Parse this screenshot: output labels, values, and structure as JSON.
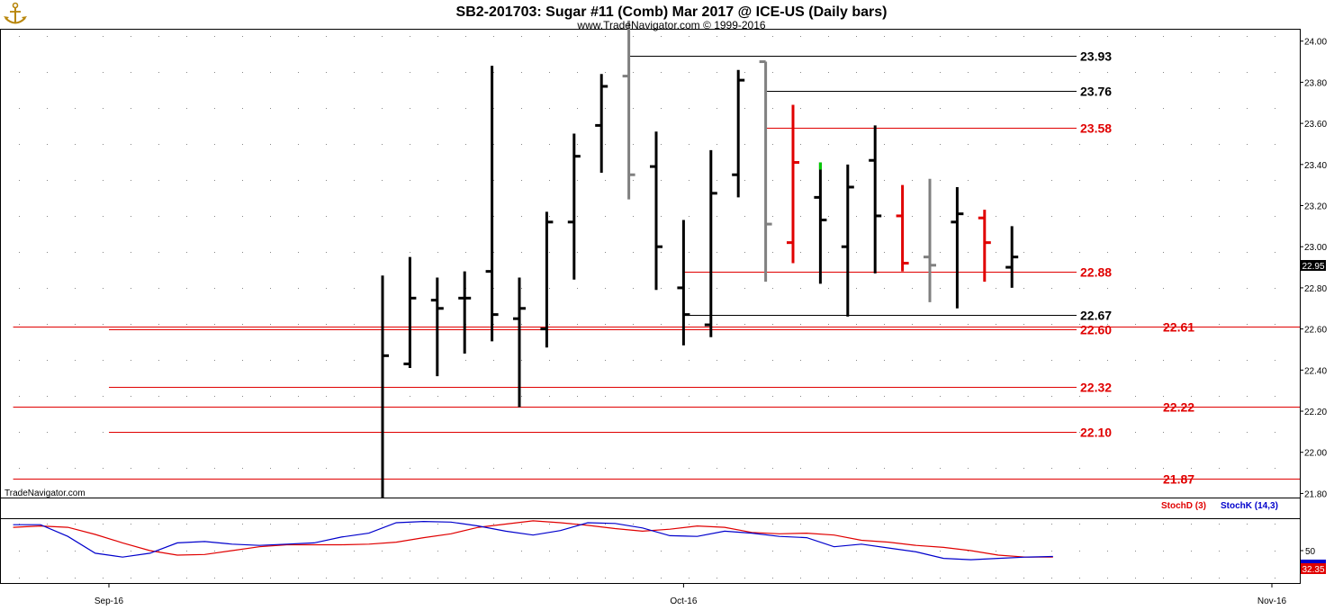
{
  "chart_data": [
    {
      "type": "ohlc",
      "title": "SB2-201703:  Sugar #11 (Comb) Mar 2017 @ ICE-US  (Daily bars)",
      "subtitle": "www.TradeNavigator.com © 1999-2016",
      "watermark": "TradeNavigator.com",
      "ylim": [
        21.78,
        24.06
      ],
      "yticks": [
        "21.80",
        "22.00",
        "22.20",
        "22.40",
        "22.60",
        "22.80",
        "23.00",
        "23.20",
        "23.40",
        "23.60",
        "23.80",
        "24.00"
      ],
      "last_price": "22.95",
      "x_labels": [
        {
          "label": "Sep-16",
          "bar": -10.0
        },
        {
          "label": "Oct-16",
          "bar": 11.0
        },
        {
          "label": "Nov-16",
          "bar": 32.5
        }
      ],
      "bars": [
        {
          "o": null,
          "h": 22.86,
          "l": 21.78,
          "c": 22.47,
          "color": "#000000"
        },
        {
          "o": 22.43,
          "h": 22.95,
          "l": 22.41,
          "c": 22.75,
          "color": "#000000"
        },
        {
          "o": 22.74,
          "h": 22.85,
          "l": 22.37,
          "c": 22.7,
          "color": "#000000"
        },
        {
          "o": 22.75,
          "h": 22.88,
          "l": 22.48,
          "c": 22.75,
          "color": "#000000"
        },
        {
          "o": 22.88,
          "h": 23.88,
          "l": 22.54,
          "c": 22.67,
          "color": "#000000"
        },
        {
          "o": 22.65,
          "h": 22.85,
          "l": 22.22,
          "c": 22.7,
          "color": "#000000"
        },
        {
          "o": 22.6,
          "h": 23.17,
          "l": 22.51,
          "c": 23.12,
          "color": "#000000"
        },
        {
          "o": 23.12,
          "h": 23.55,
          "l": 22.84,
          "c": 23.44,
          "color": "#000000"
        },
        {
          "o": 23.59,
          "h": 23.84,
          "l": 23.36,
          "c": 23.78,
          "color": "#000000"
        },
        {
          "o": 23.83,
          "h": 24.1,
          "l": 23.23,
          "c": 23.35,
          "color": "#808080"
        },
        {
          "o": 23.39,
          "h": 23.56,
          "l": 22.79,
          "c": 23.0,
          "color": "#000000"
        },
        {
          "o": 22.8,
          "h": 23.13,
          "l": 22.52,
          "c": 22.67,
          "color": "#000000"
        },
        {
          "o": 22.62,
          "h": 23.47,
          "l": 22.56,
          "c": 23.26,
          "color": "#000000"
        },
        {
          "o": 23.35,
          "h": 23.86,
          "l": 23.24,
          "c": 23.81,
          "color": "#000000"
        },
        {
          "o": 23.9,
          "h": 23.9,
          "l": 22.83,
          "c": 23.11,
          "color": "#808080"
        },
        {
          "o": 23.02,
          "h": 23.69,
          "l": 22.92,
          "c": 23.41,
          "color": "#e00000"
        },
        {
          "o": 23.24,
          "h": 23.41,
          "l": 22.82,
          "c": 23.13,
          "color": "#000000",
          "top_color": "#00cc00"
        },
        {
          "o": 23.0,
          "h": 23.4,
          "l": 22.66,
          "c": 23.29,
          "color": "#000000"
        },
        {
          "o": 23.42,
          "h": 23.59,
          "l": 22.87,
          "c": 23.15,
          "color": "#000000"
        },
        {
          "o": 23.15,
          "h": 23.3,
          "l": 22.88,
          "c": 22.92,
          "color": "#e00000"
        },
        {
          "o": 22.95,
          "h": 23.33,
          "l": 22.73,
          "c": 22.91,
          "color": "#808080"
        },
        {
          "o": 23.12,
          "h": 23.29,
          "l": 22.7,
          "c": 23.16,
          "color": "#000000"
        },
        {
          "o": 23.14,
          "h": 23.18,
          "l": 22.83,
          "c": 23.02,
          "color": "#e00000"
        },
        {
          "o": 22.9,
          "h": 23.1,
          "l": 22.8,
          "c": 22.95,
          "color": "#000000"
        }
      ],
      "levels": [
        {
          "label": "23.93",
          "value": 23.93,
          "from_bar": 9,
          "color": "#000000",
          "label_pos": "inner"
        },
        {
          "label": "23.76",
          "value": 23.76,
          "from_bar": 14,
          "color": "#000000",
          "label_pos": "inner"
        },
        {
          "label": "23.58",
          "value": 23.58,
          "from_bar": 14,
          "color": "#e00000",
          "label_pos": "inner"
        },
        {
          "label": "22.88",
          "value": 22.88,
          "from_bar": 11,
          "color": "#e00000",
          "label_pos": "inner"
        },
        {
          "label": "22.67",
          "value": 22.67,
          "from_bar": 11,
          "color": "#000000",
          "label_pos": "inner"
        },
        {
          "label": "22.60",
          "value": 22.6,
          "from_bar": -10,
          "color": "#e00000",
          "label_pos": "inner"
        },
        {
          "label": "22.61",
          "value": 22.61,
          "from_bar": -13.5,
          "color": "#e00000",
          "label_pos": "outer"
        },
        {
          "label": "22.32",
          "value": 22.32,
          "from_bar": -10,
          "color": "#e00000",
          "label_pos": "inner"
        },
        {
          "label": "22.22",
          "value": 22.22,
          "from_bar": -13.5,
          "color": "#e00000",
          "label_pos": "outer"
        },
        {
          "label": "22.10",
          "value": 22.1,
          "from_bar": -10,
          "color": "#e00000",
          "label_pos": "inner"
        },
        {
          "label": "21.87",
          "value": 21.87,
          "from_bar": -13.5,
          "color": "#e00000",
          "label_pos": "outer"
        }
      ]
    },
    {
      "type": "line",
      "legend": [
        {
          "name": "StochD (3)",
          "color": "#e00000"
        },
        {
          "name": "StochK (14,3)",
          "color": "#0000cc"
        }
      ],
      "ylim": [
        0,
        100
      ],
      "yticks": [
        "50"
      ],
      "last_value": "32.35",
      "series": [
        {
          "name": "StochD (3)",
          "color": "#e00000",
          "points": [
            [
              -13.5,
              86
            ],
            [
              -12.5,
              88
            ],
            [
              -11.5,
              86
            ],
            [
              -10.5,
              75
            ],
            [
              -9.5,
              62
            ],
            [
              -8.5,
              50
            ],
            [
              -7.5,
              43
            ],
            [
              -6.5,
              44
            ],
            [
              -5.5,
              50
            ],
            [
              -4.5,
              56
            ],
            [
              -3.5,
              59
            ],
            [
              -2.5,
              59
            ],
            [
              -1.5,
              59
            ],
            [
              -0.5,
              60
            ],
            [
              0.5,
              63
            ],
            [
              1.5,
              70
            ],
            [
              2.5,
              76
            ],
            [
              3.5,
              86
            ],
            [
              4.5,
              91
            ],
            [
              5.5,
              96
            ],
            [
              6.5,
              93
            ],
            [
              7.5,
              89
            ],
            [
              8.5,
              84
            ],
            [
              9.5,
              80
            ],
            [
              10.5,
              83
            ],
            [
              11.5,
              88
            ],
            [
              12.5,
              86
            ],
            [
              13.5,
              78
            ],
            [
              14.5,
              76
            ],
            [
              15.5,
              77
            ],
            [
              16.5,
              74
            ],
            [
              17.5,
              66
            ],
            [
              18.5,
              63
            ],
            [
              19.5,
              58
            ],
            [
              20.5,
              55
            ],
            [
              21.5,
              50
            ],
            [
              22.5,
              43
            ],
            [
              23.5,
              40
            ],
            [
              24.5,
              40
            ]
          ]
        },
        {
          "name": "StochK (14,3)",
          "color": "#0000cc",
          "points": [
            [
              -13.5,
              90
            ],
            [
              -12.5,
              90
            ],
            [
              -11.5,
              72
            ],
            [
              -10.5,
              46
            ],
            [
              -9.5,
              40
            ],
            [
              -8.5,
              46
            ],
            [
              -7.5,
              62
            ],
            [
              -6.5,
              64
            ],
            [
              -5.5,
              60
            ],
            [
              -4.5,
              58
            ],
            [
              -3.5,
              60
            ],
            [
              -2.5,
              62
            ],
            [
              -1.5,
              71
            ],
            [
              -0.5,
              77
            ],
            [
              0.5,
              93
            ],
            [
              1.5,
              95
            ],
            [
              2.5,
              94
            ],
            [
              3.5,
              88
            ],
            [
              4.5,
              80
            ],
            [
              5.5,
              74
            ],
            [
              6.5,
              81
            ],
            [
              7.5,
              93
            ],
            [
              8.5,
              92
            ],
            [
              9.5,
              85
            ],
            [
              10.5,
              73
            ],
            [
              11.5,
              72
            ],
            [
              12.5,
              80
            ],
            [
              13.5,
              77
            ],
            [
              14.5,
              72
            ],
            [
              15.5,
              70
            ],
            [
              16.5,
              56
            ],
            [
              17.5,
              60
            ],
            [
              18.5,
              54
            ],
            [
              19.5,
              48
            ],
            [
              20.5,
              38
            ],
            [
              21.5,
              36
            ],
            [
              22.5,
              38
            ],
            [
              23.5,
              40
            ],
            [
              24.5,
              41
            ]
          ]
        }
      ]
    }
  ]
}
